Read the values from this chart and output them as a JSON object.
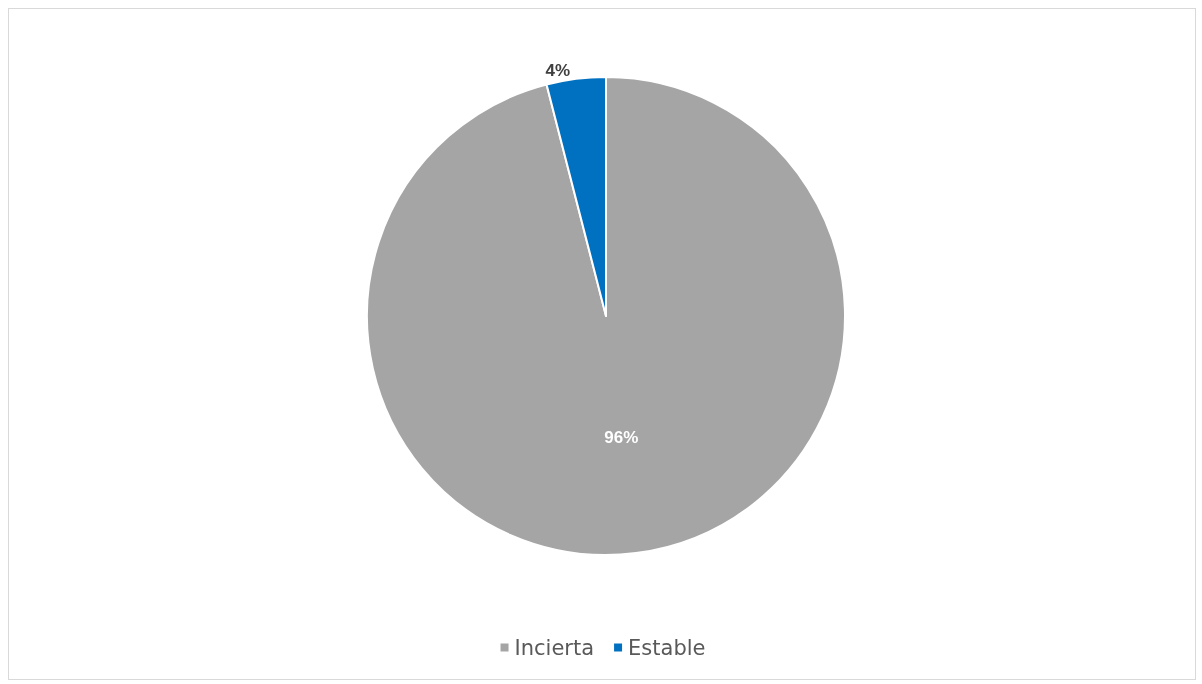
{
  "chart_data": {
    "type": "pie",
    "categories": [
      "Incierta",
      "Estable"
    ],
    "values": [
      96,
      4
    ],
    "colors": [
      "#a5a5a5",
      "#0070c0"
    ],
    "value_labels": [
      "96%",
      "4%"
    ],
    "legend": "bottom"
  }
}
